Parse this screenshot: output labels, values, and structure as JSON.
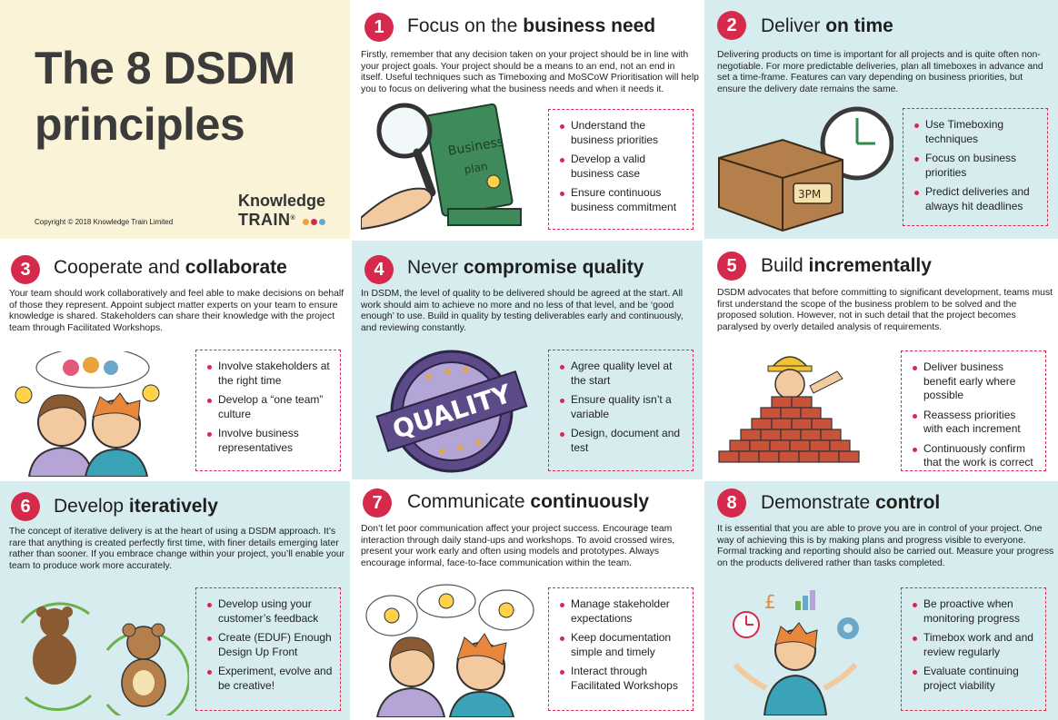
{
  "header": {
    "title_line1": "The 8 DSDM",
    "title_line2": "principles",
    "brand_line1": "Knowledge",
    "brand_line2": "TRAIN",
    "brand_mark": "®",
    "copyright": "Copyright © 2018 Knowledge Train Limited"
  },
  "colors": {
    "accent": "#d52a4c",
    "cream": "#faf3d8",
    "light_blue": "#d6ecef"
  },
  "principles": [
    {
      "number": "1",
      "title_plain": "Focus on the ",
      "title_bold": "business need",
      "description": "Firstly, remember that any decision taken on your project should be in line with your project goals. Your project should be a means to an end, not an end in itself. Useful techniques such as Timeboxing and MoSCoW Prioritisation will help you to focus on delivering what the business needs and when it needs it.",
      "bullets": [
        "Understand the business priorities",
        "Develop a valid business case",
        "Ensure continuous business commitment"
      ],
      "illustration_text": [
        "Business",
        "plan"
      ]
    },
    {
      "number": "2",
      "title_plain": "Deliver ",
      "title_bold": "on time",
      "description": "Delivering products on time is important for all projects and is quite often non-negotiable. For more predictable deliveries, plan all timeboxes in advance and set a time-frame. Features can vary depending on business priorities, but ensure the delivery date remains the same.",
      "bullets": [
        "Use Timeboxing techniques",
        "Focus on business priorities",
        "Predict deliveries and always hit deadlines"
      ],
      "illustration_text": [
        "3PM"
      ]
    },
    {
      "number": "3",
      "title_plain": "Cooperate and ",
      "title_bold": "collaborate",
      "description": "Your team should work collaboratively and feel able to make decisions on behalf of those they represent. Appoint subject matter experts on your team to ensure knowledge is shared. Stakeholders can share their knowledge with the project team through Facilitated Workshops.",
      "bullets": [
        "Involve stakeholders at the right time",
        "Develop a “one team” culture",
        "Involve business representatives"
      ]
    },
    {
      "number": "4",
      "title_plain": "Never ",
      "title_bold": "compromise quality",
      "description": "In DSDM, the level of quality to be delivered should be agreed at the start. All work should aim to achieve no more and no less of that level, and be  ‘good enough’ to use.  Build in quality by testing deliverables early and continuously, and reviewing constantly.",
      "bullets": [
        "Agree quality level at the start",
        "Ensure quality isn’t a variable",
        "Design, document and test"
      ],
      "illustration_text": [
        "QUALITY"
      ]
    },
    {
      "number": "5",
      "title_plain": "Build ",
      "title_bold": "incrementally",
      "description": "DSDM advocates that before committing to significant development, teams must first understand the scope of the business problem to be solved and the proposed solution. However, not in such detail that the project becomes paralysed by overly detailed analysis of requirements.",
      "bullets": [
        "Deliver business benefit early where possible",
        "Reassess priorities with each increment",
        "Continuously confirm that the work is correct"
      ]
    },
    {
      "number": "6",
      "title_plain": "Develop ",
      "title_bold": "iteratively",
      "description": "The concept of iterative delivery is at the heart of using a DSDM approach. It’s rare that anything is created perfectly first time, with finer details emerging later rather than sooner.  If you embrace change within your project, you’ll enable your team to produce work more accurately.",
      "bullets": [
        "Develop using your customer’s feedback",
        "Create (EDUF) Enough Design Up Front",
        "Experiment, evolve and be creative!"
      ]
    },
    {
      "number": "7",
      "title_plain": "Communicate ",
      "title_bold": "continuously",
      "description": "Don’t let poor communication affect your project success. Encourage team interaction through daily stand-ups and workshops.  To avoid crossed wires, present your work early and often using models and prototypes. Always encourage informal, face-to-face communication within the team.",
      "bullets": [
        "Manage stakeholder expectations",
        "Keep documentation simple and timely",
        "Interact through Facilitated Workshops"
      ]
    },
    {
      "number": "8",
      "title_plain": "Demonstrate ",
      "title_bold": "control",
      "description": "It is essential that you are able to prove you are in control of your project. One way of achieving this is by making plans and progress visible to everyone. Formal tracking and reporting should also be carried out. Measure your progress on the products delivered rather than tasks completed.",
      "bullets": [
        "Be proactive when monitoring progress",
        "Timebox work and and review regularly",
        "Evaluate continuing project viability"
      ],
      "illustration_text": [
        "£"
      ]
    }
  ]
}
